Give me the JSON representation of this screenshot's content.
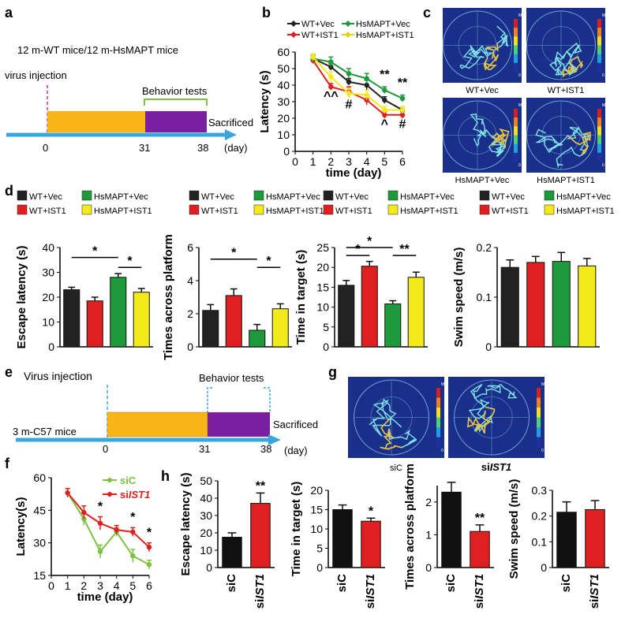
{
  "colors": {
    "wt_vec": "#222222",
    "wt_ist1": "#e02020",
    "hs_vec": "#1e9a3c",
    "hs_ist1": "#f2ea1a",
    "timeline_bar": "#f9b418",
    "timeline_purple": "#7a1fa0",
    "arrow": "#3aa7dc",
    "injection_line": "#d6337a",
    "siC": "#7dc242",
    "siIST1": "#e02020"
  },
  "panel_labels": {
    "a": "a",
    "b": "b",
    "c": "c",
    "d": "d",
    "e": "e",
    "f": "f",
    "g": "g",
    "h": "h"
  },
  "panel_a": {
    "title": "12 m-WT mice/12 m-HsMAPT mice",
    "injection": "virus injection",
    "behavior": "Behavior tests",
    "sacrificed": "Sacrificed",
    "t0": "0",
    "t31": "31",
    "t38": "38",
    "unit": "(day)"
  },
  "panel_c": {
    "labels": [
      "WT+Vec",
      "WT+IST1",
      "HsMAPT+Vec",
      "HsMAPT+IST1"
    ],
    "scale_max": "MAX",
    "scale_min": "0"
  },
  "panel_e": {
    "title": "3 m-C57 mice",
    "injection": "Virus injection",
    "behavior": "Behavior tests",
    "sacrificed": "Sacrificed",
    "t0": "0",
    "t31": "31",
    "t38": "38",
    "unit": "(day)"
  },
  "panel_g": {
    "labels": [
      "siC",
      "siIST1"
    ],
    "label_prefix": "si",
    "label_italic": "IST1",
    "scale_max": "MAX",
    "scale_min": "0"
  },
  "legend_d": {
    "wt_vec": "WT+Vec",
    "wt_ist1": "WT+IST1",
    "hs_vec": "HsMAPT+Vec",
    "hs_ist1": "HsMAPT+IST1"
  },
  "chart_data": [
    {
      "id": "b",
      "type": "line",
      "title": "",
      "xlabel": "time (day)",
      "ylabel": "Latency (s)",
      "x": [
        1,
        2,
        3,
        4,
        5,
        6
      ],
      "xlim": [
        0,
        6
      ],
      "ylim": [
        0,
        60
      ],
      "yticks": [
        0,
        10,
        20,
        30,
        40,
        50,
        60
      ],
      "xticks": [
        0,
        1,
        2,
        3,
        4,
        5,
        6
      ],
      "series": [
        {
          "name": "WT+Vec",
          "color": "#222222",
          "values": [
            56,
            51,
            42,
            40,
            31,
            25
          ],
          "err": [
            2,
            2,
            2,
            3,
            2,
            2
          ]
        },
        {
          "name": "WT+IST1",
          "color": "#e02020",
          "values": [
            55,
            39,
            36,
            31,
            22,
            22
          ],
          "err": [
            2,
            2,
            3,
            3,
            2,
            2
          ]
        },
        {
          "name": "HsMAPT+Vec",
          "color": "#1e9a3c",
          "values": [
            56,
            54,
            47,
            44,
            37,
            32
          ],
          "err": [
            2,
            3,
            3,
            3,
            2,
            2
          ]
        },
        {
          "name": "HsMAPT+IST1",
          "color": "#f2ea1a",
          "values": [
            57,
            45,
            35,
            34,
            25,
            25
          ],
          "err": [
            2,
            3,
            3,
            3,
            2,
            2
          ]
        }
      ],
      "annotations": [
        {
          "x": 5,
          "y": 44,
          "text": "**"
        },
        {
          "x": 6,
          "y": 39,
          "text": "**"
        },
        {
          "x": 2,
          "y": 31,
          "text": "^^"
        },
        {
          "x": 3,
          "y": 26,
          "text": "#"
        },
        {
          "x": 5,
          "y": 14,
          "text": "^"
        },
        {
          "x": 6,
          "y": 14,
          "text": "#"
        }
      ]
    },
    {
      "id": "d1",
      "type": "bar",
      "title": "",
      "xlabel": "",
      "ylabel": "Escape latency (s)",
      "categories": [
        "WT+Vec",
        "WT+IST1",
        "HsMAPT+Vec",
        "HsMAPT+IST1"
      ],
      "values": [
        23,
        18.5,
        28,
        22
      ],
      "err": [
        1,
        1.5,
        1.5,
        1.5
      ],
      "ylim": [
        0,
        40
      ],
      "yticks": [
        0,
        10,
        20,
        30,
        40
      ],
      "colors": [
        "#222222",
        "#e02020",
        "#1e9a3c",
        "#f2ea1a"
      ],
      "sig": [
        {
          "from": 0,
          "to": 2,
          "y": 36,
          "text": "*"
        },
        {
          "from": 2,
          "to": 3,
          "y": 32,
          "text": "*"
        }
      ]
    },
    {
      "id": "d2",
      "type": "bar",
      "title": "",
      "xlabel": "",
      "ylabel": "Times across platform",
      "categories": [
        "WT+Vec",
        "WT+IST1",
        "HsMAPT+Vec",
        "HsMAPT+IST1"
      ],
      "values": [
        2.2,
        3.1,
        1.0,
        2.3
      ],
      "err": [
        0.35,
        0.4,
        0.35,
        0.3
      ],
      "ylim": [
        0,
        6
      ],
      "yticks": [
        0,
        2,
        4,
        6
      ],
      "colors": [
        "#222222",
        "#e02020",
        "#1e9a3c",
        "#f2ea1a"
      ],
      "sig": [
        {
          "from": 0,
          "to": 2,
          "y": 5.3,
          "text": "*"
        },
        {
          "from": 2,
          "to": 3,
          "y": 4.8,
          "text": "*"
        }
      ]
    },
    {
      "id": "d3",
      "type": "bar",
      "title": "",
      "xlabel": "",
      "ylabel": "Time in target (s)",
      "categories": [
        "WT+Vec",
        "WT+IST1",
        "HsMAPT+Vec",
        "HsMAPT+IST1"
      ],
      "values": [
        15.5,
        20.3,
        10.8,
        17.5
      ],
      "err": [
        1.2,
        1.2,
        0.8,
        1.3
      ],
      "ylim": [
        0,
        25
      ],
      "yticks": [
        0,
        5,
        10,
        15,
        20,
        25
      ],
      "colors": [
        "#222222",
        "#e02020",
        "#1e9a3c",
        "#f2ea1a"
      ],
      "sig": [
        {
          "from": 0,
          "to": 2,
          "y": 25,
          "text": "*"
        },
        {
          "from": 0,
          "to": 1,
          "y": 23,
          "text": "*"
        },
        {
          "from": 2,
          "to": 3,
          "y": 23,
          "text": "**"
        }
      ]
    },
    {
      "id": "d4",
      "type": "bar",
      "title": "",
      "xlabel": "",
      "ylabel": "Swim speed (m/s)",
      "categories": [
        "WT+Vec",
        "WT+IST1",
        "HsMAPT+Vec",
        "HsMAPT+IST1"
      ],
      "values": [
        0.16,
        0.17,
        0.172,
        0.163
      ],
      "err": [
        0.015,
        0.012,
        0.018,
        0.015
      ],
      "ylim": [
        0,
        0.2
      ],
      "yticks": [
        0,
        0.1,
        0.2
      ],
      "colors": [
        "#222222",
        "#e02020",
        "#1e9a3c",
        "#f2ea1a"
      ],
      "sig": []
    },
    {
      "id": "f",
      "type": "line",
      "title": "",
      "xlabel": "time (day)",
      "ylabel": "Latency(s)",
      "x": [
        1,
        2,
        3,
        4,
        5,
        6
      ],
      "xlim": [
        0,
        6
      ],
      "ylim": [
        15,
        60
      ],
      "yticks": [
        15,
        30,
        45,
        60
      ],
      "xticks": [
        0,
        1,
        2,
        3,
        4,
        5,
        6
      ],
      "series": [
        {
          "name": "siC",
          "color": "#7dc242",
          "values": [
            53,
            41,
            26,
            35,
            24,
            20
          ],
          "err": [
            2,
            3,
            3,
            2,
            3,
            2
          ]
        },
        {
          "name": "siIST1",
          "color": "#e02020",
          "values": [
            53,
            44,
            39,
            36,
            35,
            28
          ],
          "err": [
            2,
            3,
            3,
            2,
            2,
            2
          ]
        }
      ],
      "annotations": [
        {
          "x": 3,
          "y": 45,
          "text": "*"
        },
        {
          "x": 5,
          "y": 40,
          "text": "*"
        },
        {
          "x": 6,
          "y": 33,
          "text": "*"
        }
      ]
    },
    {
      "id": "h1",
      "type": "bar",
      "xlabel": "",
      "ylabel": "Escape latency (s)",
      "categories": [
        "siC",
        "siIST1"
      ],
      "values": [
        17.5,
        37
      ],
      "err": [
        2.5,
        6
      ],
      "ylim": [
        0,
        50
      ],
      "yticks": [
        0,
        10,
        20,
        30,
        40,
        50
      ],
      "colors": [
        "#111111",
        "#e02020"
      ],
      "sig": [
        {
          "bar": 1,
          "text": "**"
        }
      ]
    },
    {
      "id": "h2",
      "type": "bar",
      "xlabel": "",
      "ylabel": "Time in target (s)",
      "categories": [
        "siC",
        "siIST1"
      ],
      "values": [
        15,
        12
      ],
      "err": [
        1.2,
        0.8
      ],
      "ylim": [
        0,
        20
      ],
      "yticks": [
        0,
        5,
        10,
        15,
        20
      ],
      "colors": [
        "#111111",
        "#e02020"
      ],
      "sig": [
        {
          "bar": 1,
          "text": "*"
        }
      ]
    },
    {
      "id": "h3",
      "type": "bar",
      "xlabel": "",
      "ylabel": "Times across platform",
      "categories": [
        "siC",
        "siIST1"
      ],
      "values": [
        2.3,
        1.1
      ],
      "err": [
        0.3,
        0.2
      ],
      "ylim": [
        0,
        2.5
      ],
      "yticks": [
        0,
        1,
        2
      ],
      "colors": [
        "#111111",
        "#e02020"
      ],
      "sig": [
        {
          "bar": 1,
          "text": "**"
        }
      ]
    },
    {
      "id": "h4",
      "type": "bar",
      "xlabel": "",
      "ylabel": "Swim speed (m/s)",
      "categories": [
        "siC",
        "siIST1"
      ],
      "values": [
        0.215,
        0.225
      ],
      "err": [
        0.04,
        0.035
      ],
      "ylim": [
        0,
        0.3
      ],
      "yticks": [
        0,
        0.1,
        0.2,
        0.3
      ],
      "colors": [
        "#111111",
        "#e02020"
      ],
      "sig": []
    }
  ]
}
